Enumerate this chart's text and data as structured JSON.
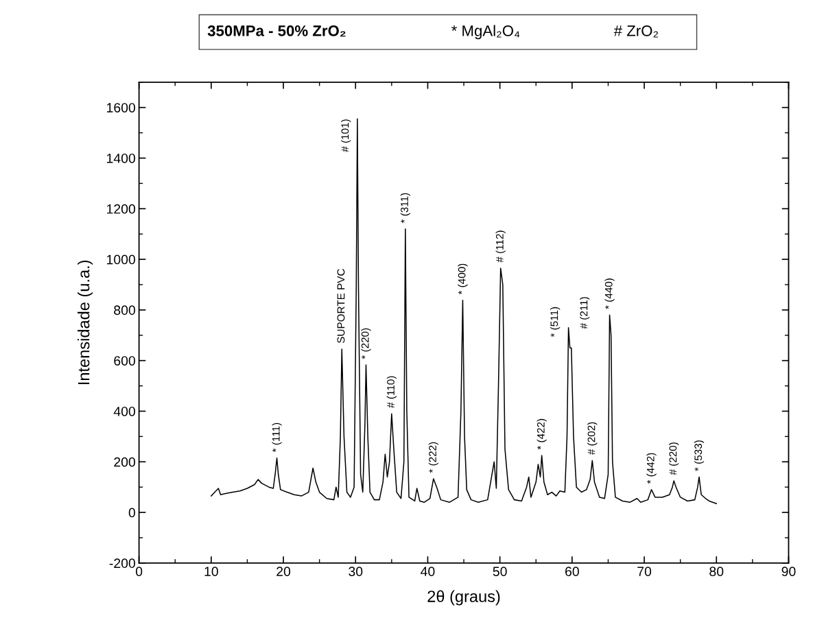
{
  "chart_data": {
    "type": "line",
    "title": "350MPa - 50% ZrO₂",
    "xlabel": "2θ (graus)",
    "ylabel": "Intensidade (u.a.)",
    "annotations": [
      "* MgAl₂O₄",
      "# ZrO₂",
      {
        "text": "* (111)",
        "x": 19.1,
        "y": 215
      },
      {
        "text": "SUPORTE PVC",
        "x": 28.1,
        "y": 645
      },
      {
        "text": "# (101)",
        "x": 30.25,
        "y": 1555
      },
      {
        "text": "* (220)",
        "x": 31.45,
        "y": 583
      },
      {
        "text": "# (110)",
        "x": 35.0,
        "y": 390
      },
      {
        "text": "* (311)",
        "x": 36.9,
        "y": 1120
      },
      {
        "text": "* (222)",
        "x": 40.8,
        "y": 133
      },
      {
        "text": "* (400)",
        "x": 44.85,
        "y": 838
      },
      {
        "text": "# (112)",
        "x": 50.1,
        "y": 965
      },
      {
        "text": "* (422)",
        "x": 55.8,
        "y": 225
      },
      {
        "text": "* (511)",
        "x": 59.5,
        "y": 730
      },
      {
        "text": "# (211)",
        "x": 59.9,
        "y": 650
      },
      {
        "text": "# (202)",
        "x": 62.8,
        "y": 205
      },
      {
        "text": "* (440)",
        "x": 65.2,
        "y": 780
      },
      {
        "text": "* (442)",
        "x": 71.0,
        "y": 90
      },
      {
        "text": "# (220)",
        "x": 74.1,
        "y": 125
      },
      {
        "text": "* (533)",
        "x": 77.6,
        "y": 140
      }
    ],
    "x": [
      10.0,
      10.5,
      11,
      11.3,
      12,
      13,
      14,
      15,
      16,
      16.5,
      17,
      18,
      18.6,
      18.9,
      19.1,
      19.3,
      19.6,
      20.5,
      21.5,
      22.5,
      23.5,
      24.1,
      24.5,
      25,
      26,
      27,
      27.3,
      27.6,
      27.9,
      28.1,
      28.4,
      28.8,
      29.3,
      29.8,
      30.1,
      30.25,
      30.4,
      30.7,
      31.0,
      31.3,
      31.45,
      31.7,
      32.0,
      32.6,
      33.3,
      33.8,
      34.1,
      34.4,
      34.7,
      35.0,
      35.3,
      35.7,
      36.3,
      36.7,
      36.9,
      37.1,
      37.4,
      38.2,
      38.5,
      38.9,
      39.5,
      40.3,
      40.8,
      41.3,
      41.8,
      43,
      44.2,
      44.6,
      44.85,
      45.1,
      45.4,
      46,
      47,
      48.3,
      48.9,
      49.2,
      49.5,
      49.8,
      50.1,
      50.4,
      50.7,
      51.2,
      52.0,
      53.0,
      53.7,
      54.0,
      54.3,
      55.0,
      55.3,
      55.6,
      55.8,
      56.1,
      56.6,
      57.2,
      57.8,
      58.3,
      59.0,
      59.3,
      59.5,
      59.7,
      59.9,
      60.2,
      60.6,
      61.3,
      62.0,
      62.5,
      62.8,
      63.1,
      63.8,
      64.5,
      65.0,
      65.2,
      65.4,
      65.6,
      66.0,
      67,
      68,
      69,
      69.5,
      70.5,
      71.0,
      71.5,
      72.5,
      73.5,
      73.9,
      74.1,
      74.4,
      75,
      76,
      77,
      77.4,
      77.6,
      77.9,
      78.5,
      79,
      80
    ],
    "values": [
      65,
      80,
      95,
      70,
      75,
      80,
      85,
      95,
      110,
      130,
      115,
      100,
      95,
      160,
      215,
      150,
      90,
      80,
      70,
      65,
      80,
      175,
      120,
      80,
      55,
      50,
      100,
      60,
      300,
      645,
      300,
      80,
      60,
      100,
      900,
      1555,
      900,
      150,
      80,
      350,
      583,
      300,
      80,
      50,
      50,
      120,
      230,
      140,
      200,
      390,
      250,
      80,
      55,
      200,
      1120,
      400,
      60,
      45,
      95,
      45,
      40,
      55,
      133,
      95,
      50,
      40,
      60,
      400,
      838,
      300,
      90,
      50,
      40,
      50,
      150,
      200,
      95,
      500,
      965,
      900,
      250,
      90,
      50,
      45,
      100,
      140,
      60,
      120,
      190,
      140,
      225,
      120,
      70,
      80,
      65,
      85,
      80,
      300,
      730,
      650,
      650,
      300,
      100,
      80,
      90,
      130,
      205,
      120,
      60,
      55,
      150,
      780,
      700,
      200,
      60,
      45,
      40,
      55,
      40,
      50,
      90,
      60,
      60,
      70,
      100,
      125,
      100,
      60,
      45,
      50,
      100,
      140,
      70,
      55,
      45,
      35
    ],
    "color": "#000000",
    "xlim": [
      0,
      90
    ],
    "xticks": [
      0,
      10,
      20,
      30,
      40,
      50,
      60,
      70,
      80,
      90
    ],
    "ylim": [
      -200,
      1700
    ],
    "yticks": [
      -200,
      0,
      200,
      400,
      600,
      800,
      1000,
      1200,
      1400,
      1600
    ]
  }
}
